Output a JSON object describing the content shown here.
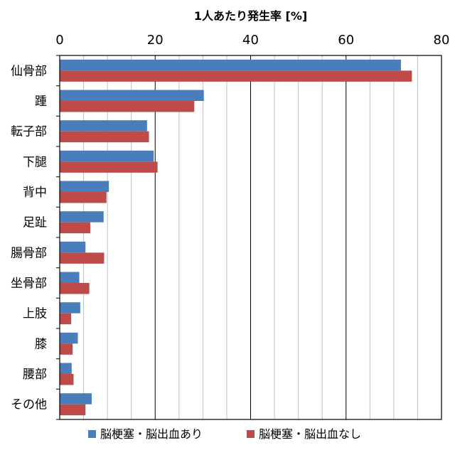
{
  "chart_data": {
    "type": "bar",
    "orientation": "horizontal",
    "title": "1人あたり発生率 [%]",
    "xlabel": "1人あたり発生率 [%]",
    "ylabel": "",
    "xlim": [
      0,
      80
    ],
    "x_ticks": [
      "0",
      "20",
      "40",
      "60",
      "80"
    ],
    "grid": true,
    "legend_position": "bottom",
    "categories": [
      "仙骨部",
      "踵",
      "転子部",
      "下腿",
      "背中",
      "足趾",
      "腸骨部",
      "坐骨部",
      "上肢",
      "膝",
      "腰部",
      "その他"
    ],
    "series": [
      {
        "name": "脳梗塞・脳出血あり",
        "color": "#4a7ebb",
        "values": [
          71.5,
          30.2,
          18.3,
          19.7,
          10.3,
          9.2,
          5.4,
          4.1,
          4.3,
          3.8,
          2.5,
          6.7
        ]
      },
      {
        "name": "脳梗塞・脳出血なし",
        "color": "#be4b48",
        "values": [
          73.8,
          28.2,
          18.7,
          20.5,
          9.8,
          6.4,
          9.3,
          6.2,
          2.4,
          2.7,
          2.9,
          5.4
        ]
      }
    ]
  }
}
